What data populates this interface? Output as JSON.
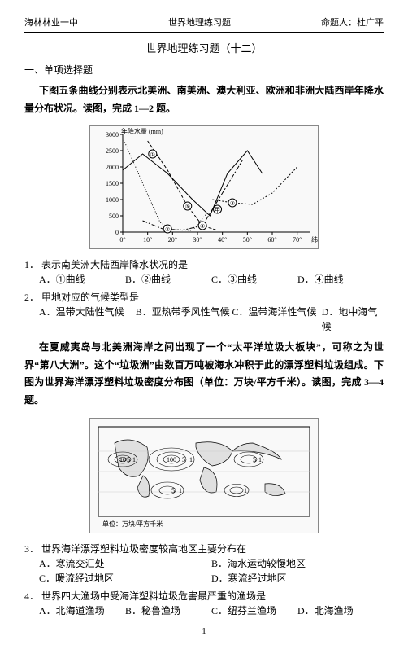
{
  "header": {
    "school": "海林林业一中",
    "doc_title": "世界地理练习题",
    "author_label": "命题人：杜广平"
  },
  "title": "世界地理练习题（十二）",
  "section1": "一、单项选择题",
  "intro1": "下图五条曲线分别表示北美洲、南美洲、澳大利亚、欧洲和非洲大陆西岸年降水量分布状况。读图，完成 1—2 题。",
  "chart1": {
    "y_label": "年降水量 (mm)",
    "y_ticks": [
      "3000",
      "2500",
      "2000",
      "1500",
      "1000",
      "500",
      "0"
    ],
    "x_ticks": [
      "0°",
      "10°",
      "20°",
      "30°",
      "40°",
      "50°",
      "60°",
      "70°"
    ],
    "x_label": "纬度",
    "curve_markers": [
      "①",
      "②",
      "③",
      "④",
      "⑤",
      "甲"
    ],
    "background_color": "#ffffff",
    "line_color": "#000000",
    "axis_color": "#000000",
    "font_size_pt": 8,
    "curves": {
      "c1": [
        {
          "x": 0,
          "y": 1900
        },
        {
          "x": 8,
          "y": 2400
        },
        {
          "x": 18,
          "y": 1800
        },
        {
          "x": 28,
          "y": 1000
        },
        {
          "x": 35,
          "y": 500
        },
        {
          "x": 42,
          "y": 1800
        },
        {
          "x": 50,
          "y": 2500
        },
        {
          "x": 56,
          "y": 1800
        }
      ],
      "c2": [
        {
          "x": 10,
          "y": 2800
        },
        {
          "x": 18,
          "y": 1900
        },
        {
          "x": 26,
          "y": 800
        },
        {
          "x": 32,
          "y": 200
        },
        {
          "x": 38,
          "y": 50
        }
      ],
      "c3": [
        {
          "x": 36,
          "y": 1000
        },
        {
          "x": 44,
          "y": 900
        },
        {
          "x": 52,
          "y": 850
        },
        {
          "x": 60,
          "y": 1200
        },
        {
          "x": 70,
          "y": 2000
        }
      ],
      "c4": [
        {
          "x": 8,
          "y": 350
        },
        {
          "x": 16,
          "y": 100
        },
        {
          "x": 24,
          "y": 60
        },
        {
          "x": 32,
          "y": 200
        },
        {
          "x": 40,
          "y": 1200
        },
        {
          "x": 48,
          "y": 2200
        }
      ],
      "c5": [
        {
          "x": 0,
          "y": 2900
        },
        {
          "x": 8,
          "y": 1500
        },
        {
          "x": 15,
          "y": 300
        },
        {
          "x": 20,
          "y": 80
        },
        {
          "x": 28,
          "y": 50
        },
        {
          "x": 34,
          "y": 600
        }
      ]
    },
    "xlim": [
      0,
      75
    ],
    "ylim": [
      0,
      3000
    ]
  },
  "q1": {
    "num": "1．",
    "text": "表示南美洲大陆西岸降水状况的是",
    "options": {
      "A": "①曲线",
      "B": "②曲线",
      "C": "③曲线",
      "D": "④曲线"
    }
  },
  "q2": {
    "num": "2．",
    "text": "甲地对应的气候类型是",
    "options": {
      "A": "温带大陆性气候",
      "B": "亚热带季风性气候",
      "C": "温带海洋性气候",
      "D": "地中海气候"
    }
  },
  "intro2": "在夏威夷岛与北美洲海岸之间出现了一个“太平洋垃圾大板块”，可称之为世界“第八大洲”。这个“垃圾洲”由数百万吨被海水冲积于此的漂浮塑料垃圾组成。下图为世界海洋漂浮塑料垃圾密度分布图（单位：万块/平方千米）。读图，完成 3—4 题。",
  "map1": {
    "labels": [
      "1",
      "5",
      "10",
      "100",
      "5",
      "1"
    ],
    "caption": "单位：万块/平方千米",
    "border_color": "#000000",
    "background_color": "#ffffff",
    "land_color": "#e0e0e0",
    "contour_color": "#000000",
    "font_size_pt": 8
  },
  "q3": {
    "num": "3．",
    "text": "世界海洋漂浮塑料垃圾密度较高地区主要分布在",
    "options": {
      "A": "寒流交汇处",
      "B": "海水运动较慢地区",
      "C": "暖流经过地区",
      "D": "寒流经过地区"
    }
  },
  "q4": {
    "num": "4．",
    "text": "世界四大渔场中受海洋塑料垃圾危害最严重的渔场是",
    "options": {
      "A": "北海道渔场",
      "B": "秘鲁渔场",
      "C": "纽芬兰渔场",
      "D": "北海渔场"
    }
  },
  "option_labels": {
    "A": "A．",
    "B": "B．",
    "C": "C．",
    "D": "D．"
  },
  "page_number": "1"
}
